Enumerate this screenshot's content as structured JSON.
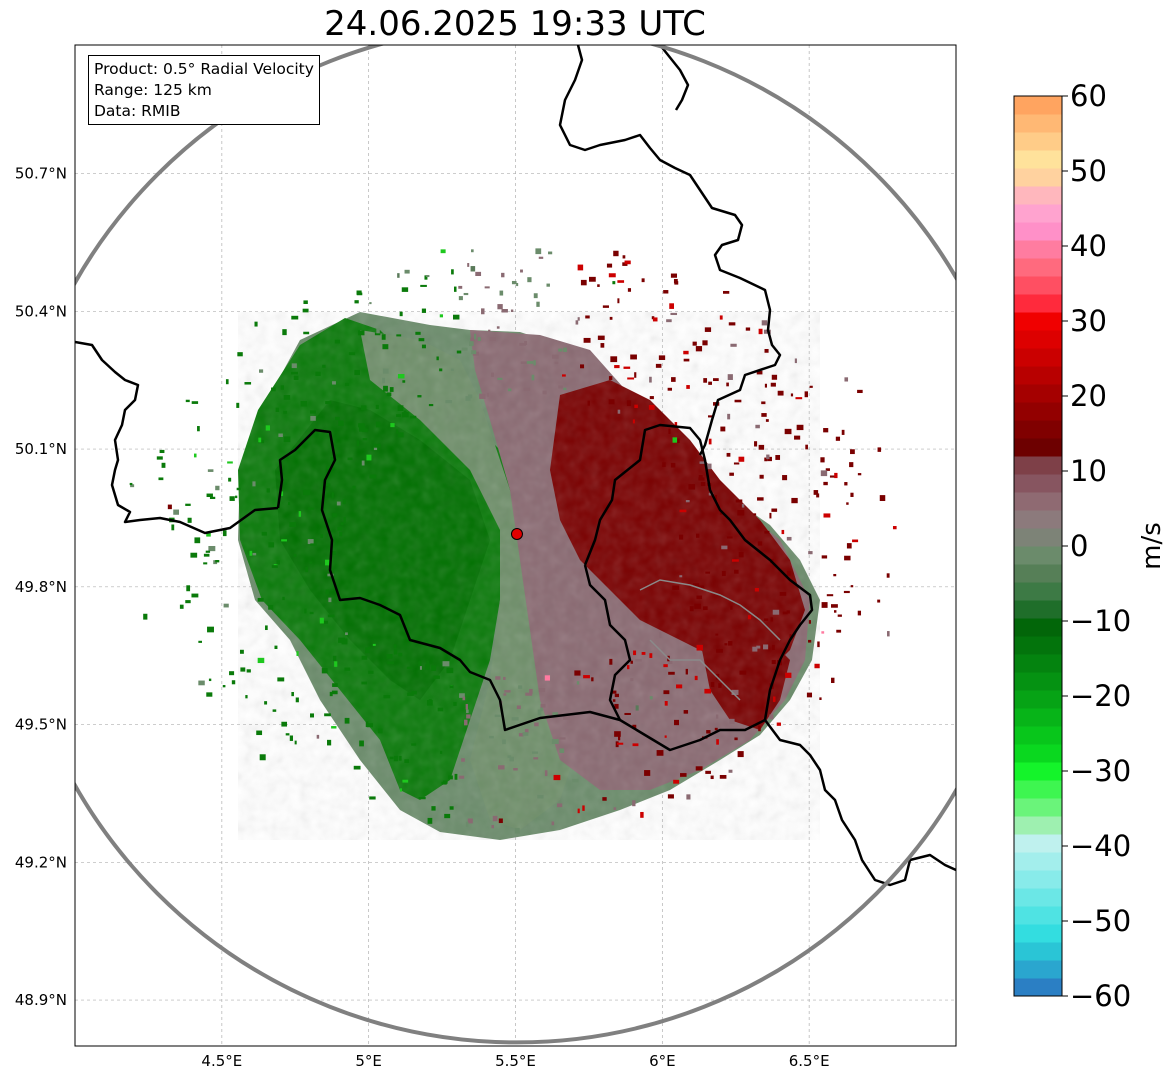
{
  "title": "24.06.2025 19:33 UTC",
  "info": {
    "product": "Product: 0.5° Radial Velocity",
    "range": "Range: 125 km",
    "data": "Data: RMIB"
  },
  "map": {
    "lon_range": [
      4.0,
      7.0
    ],
    "lat_range": [
      48.8,
      50.98
    ],
    "lon_ticks": [
      {
        "value": 4.5,
        "label": "4.5°E"
      },
      {
        "value": 5.0,
        "label": "5°E"
      },
      {
        "value": 5.5,
        "label": "5.5°E"
      },
      {
        "value": 6.0,
        "label": "6°E"
      },
      {
        "value": 6.5,
        "label": "6.5°E"
      }
    ],
    "lat_ticks": [
      {
        "value": 50.7,
        "label": "50.7°N"
      },
      {
        "value": 50.4,
        "label": "50.4°N"
      },
      {
        "value": 50.1,
        "label": "50.1°N"
      },
      {
        "value": 49.8,
        "label": "49.8°N"
      },
      {
        "value": 49.5,
        "label": "49.5°N"
      },
      {
        "value": 49.2,
        "label": "49.2°N"
      },
      {
        "value": 48.9,
        "label": "48.9°N"
      }
    ],
    "radar_site": {
      "lon": 5.505,
      "lat": 49.915
    },
    "range_km": 125,
    "colors": {
      "outbound_strong": "#7a0000",
      "outbound_weak": "#8a6a72",
      "near_zero": "#6b8c6b",
      "inbound": "#0a7a0a",
      "range_ring": "#808080",
      "radar_marker": "#e00000"
    }
  },
  "colorbar": {
    "label": "m/s",
    "min": -60,
    "max": 60,
    "ticks": [
      {
        "value": 60,
        "label": "60"
      },
      {
        "value": 50,
        "label": "50"
      },
      {
        "value": 40,
        "label": "40"
      },
      {
        "value": 30,
        "label": "30"
      },
      {
        "value": 20,
        "label": "20"
      },
      {
        "value": 10,
        "label": "10"
      },
      {
        "value": 0,
        "label": "0"
      },
      {
        "value": -10,
        "label": "−10"
      },
      {
        "value": -20,
        "label": "−20"
      },
      {
        "value": -30,
        "label": "−30"
      },
      {
        "value": -40,
        "label": "−40"
      },
      {
        "value": -50,
        "label": "−50"
      },
      {
        "value": -60,
        "label": "−60"
      }
    ],
    "bands": [
      "#2b7fc4",
      "#2aa6cf",
      "#2ac5d6",
      "#33dde0",
      "#4fe3e3",
      "#6be7e6",
      "#88ebea",
      "#a3eeec",
      "#bff1ee",
      "#9ef0b0",
      "#6af47a",
      "#3ef650",
      "#14f42a",
      "#0ad81f",
      "#08c61b",
      "#07b418",
      "#06a315",
      "#059212",
      "#04830f",
      "#03740c",
      "#026609",
      "#1f6e2a",
      "#3d7a45",
      "#567f57",
      "#6b8b6b",
      "#7d8377",
      "#8c7a7c",
      "#8f6a72",
      "#875560",
      "#7e4048",
      "#6d0000",
      "#800000",
      "#930000",
      "#a50000",
      "#b80000",
      "#cb0000",
      "#dd0000",
      "#f00000",
      "#ff2a3c",
      "#ff4f62",
      "#ff6a7e",
      "#ff7ca0",
      "#ff90c8",
      "#ffa3cf",
      "#ffb7bd",
      "#ffd29f",
      "#ffe29b",
      "#ffcc88",
      "#ffb874",
      "#ffa460"
    ]
  }
}
